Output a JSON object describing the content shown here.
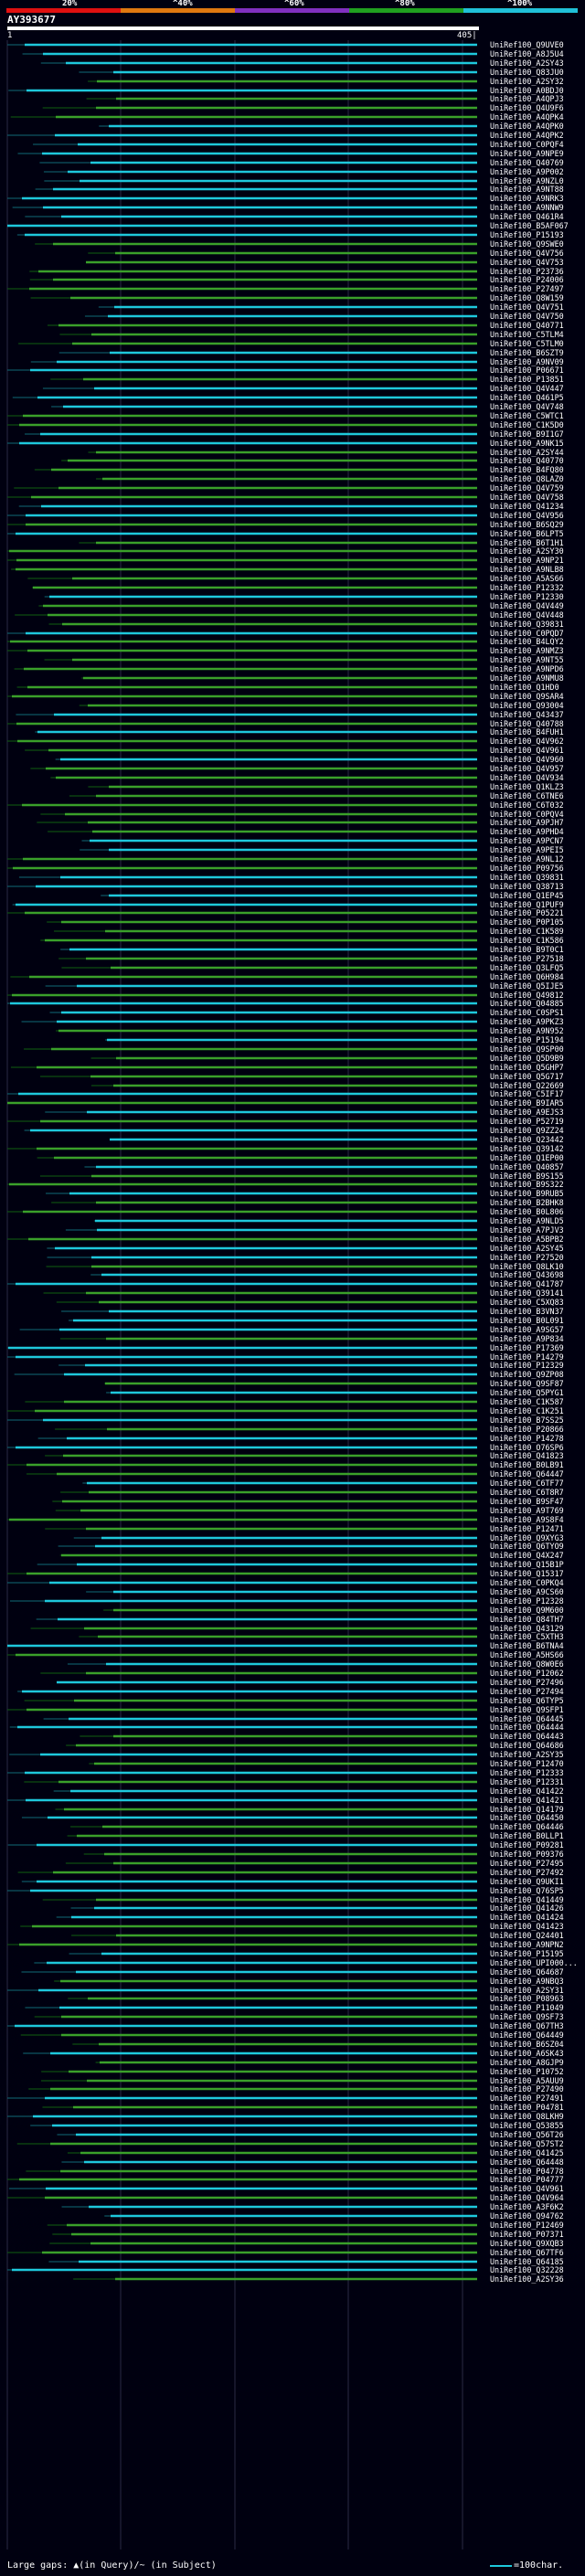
{
  "scale": {
    "labels": [
      "20%",
      "^40%",
      "^60%",
      "^80%",
      "^100%"
    ],
    "colors": [
      "#e01010",
      "#e07810",
      "#8030c0",
      "#20a020",
      "#20c0d8"
    ]
  },
  "query": {
    "id": "AY393677",
    "start": "1",
    "end": "405|"
  },
  "hits": [
    "UniRef100_Q9UVE0",
    "UniRef100_A8J5U4",
    "UniRef100_A2SY43",
    "UniRef100_Q83JU0",
    "UniRef100_A2SY32",
    "UniRef100_A0BDJ0",
    "UniRef100_A4QPJ3",
    "UniRef100_Q4U9F6",
    "UniRef100_A4QPK4",
    "UniRef100_A4QPK0",
    "UniRef100_A4QPK2",
    "UniRef100_C0PQF4",
    "UniRef100_A9NPE9",
    "UniRef100_Q40769",
    "UniRef100_A9P002",
    "UniRef100_A9NZL0",
    "UniRef100_A9NT88",
    "UniRef100_A9NRK3",
    "UniRef100_A9NNW9",
    "UniRef100_Q461R4",
    "UniRef100_B5AF067",
    "UniRef100_P15193",
    "UniRef100_Q9SWE0",
    "UniRef100_Q4V756",
    "UniRef100_Q4V753",
    "UniRef100_P23736",
    "UniRef100_P24006",
    "UniRef100_P27497",
    "UniRef100_Q8W159",
    "UniRef100_Q4V751",
    "UniRef100_Q4V750",
    "UniRef100_Q40771",
    "UniRef100_C5TLM4",
    "UniRef100_C5TLM0",
    "UniRef100_B6SZT9",
    "UniRef100_A9NV09",
    "UniRef100_P06671",
    "UniRef100_P13851",
    "UniRef100_Q4V447",
    "UniRef100_Q461P5",
    "UniRef100_Q4V748",
    "UniRef100_C5WTC1",
    "UniRef100_C1K5D0",
    "UniRef100_B9I1G7",
    "UniRef100_A9NK15",
    "UniRef100_A2SY44",
    "UniRef100_Q40770",
    "UniRef100_B4FQ80",
    "UniRef100_Q8LAZ0",
    "UniRef100_Q4V759",
    "UniRef100_Q4V758",
    "UniRef100_Q41234",
    "UniRef100_Q4V956",
    "UniRef100_B6SQ29",
    "UniRef100_B6LPT5",
    "UniRef100_B6T1H1",
    "UniRef100_A2SY30",
    "UniRef100_A9NP21",
    "UniRef100_A9NLB8",
    "UniRef100_A5AS66",
    "UniRef100_P12332",
    "UniRef100_P12330",
    "UniRef100_Q4V449",
    "UniRef100_Q4V448",
    "UniRef100_Q39831",
    "UniRef100_C0PQD7",
    "UniRef100_B4LQY2",
    "UniRef100_A9NMZ3",
    "UniRef100_A9NT55",
    "UniRef100_A9NPD6",
    "UniRef100_A9NMU8",
    "UniRef100_Q1HD0",
    "UniRef100_Q9SAR4",
    "UniRef100_Q93004",
    "UniRef100_Q43437",
    "UniRef100_Q40788",
    "UniRef100_B4FUH1",
    "UniRef100_Q4V962",
    "UniRef100_Q4V961",
    "UniRef100_Q4V960",
    "UniRef100_Q4V957",
    "UniRef100_Q4V934",
    "UniRef100_Q1KLZ3",
    "UniRef100_C6TNE6",
    "UniRef100_C6T032",
    "UniRef100_C0PQV4",
    "UniRef100_A9PJH7",
    "UniRef100_A9PHD4",
    "UniRef100_A9PCN7",
    "UniRef100_A9PEI5",
    "UniRef100_A9NL12",
    "UniRef100_P09756",
    "UniRef100_Q39831",
    "UniRef100_Q38713",
    "UniRef100_Q1EP45",
    "UniRef100_Q1PUF9",
    "UniRef100_P05221",
    "UniRef100_P0P105",
    "UniRef100_C1K589",
    "UniRef100_C1K586",
    "UniRef100_B9T0C1",
    "UniRef100_P27518",
    "UniRef100_Q3LFQ5",
    "UniRef100_Q6H984",
    "UniRef100_Q5IJE5",
    "UniRef100_Q49812",
    "UniRef100_Q04885",
    "UniRef100_C0SPS1",
    "UniRef100_A9PKZ3",
    "UniRef100_A9N952",
    "UniRef100_P15194",
    "UniRef100_Q9SP00",
    "UniRef100_Q5D9B9",
    "UniRef100_Q5GHP7",
    "UniRef100_Q5G717",
    "UniRef100_Q22669",
    "UniRef100_C5IF17",
    "UniRef100_B9IAR5",
    "UniRef100_A9EJS3",
    "UniRef100_P52719",
    "UniRef100_Q9ZZ24",
    "UniRef100_Q23442",
    "UniRef100_Q39142",
    "UniRef100_Q1EP00",
    "UniRef100_Q40857",
    "UniRef100_B9S155",
    "UniRef100_B9S322",
    "UniRef100_B9RUB5",
    "UniRef100_B2BHK8",
    "UniRef100_B0L806",
    "UniRef100_A9NLD5",
    "UniRef100_A7PJV3",
    "UniRef100_A5BPB2",
    "UniRef100_A2SY45",
    "UniRef100_P27520",
    "UniRef100_Q8LK10",
    "UniRef100_Q43698",
    "UniRef100_Q41787",
    "UniRef100_Q39141",
    "UniRef100_C5XQ83",
    "UniRef100_B3VN37",
    "UniRef100_B0L091",
    "UniRef100_A9SG57",
    "UniRef100_A9P834",
    "UniRef100_P17369",
    "UniRef100_P14279",
    "UniRef100_P12329",
    "UniRef100_Q9ZP08",
    "UniRef100_Q9SF87",
    "UniRef100_Q5PYG1",
    "UniRef100_C1K587",
    "UniRef100_C1K251",
    "UniRef100_B7SS25",
    "UniRef100_P20866",
    "UniRef100_P14278",
    "UniRef100_O76SP6",
    "UniRef100_Q41823",
    "UniRef100_B0LB91",
    "UniRef100_Q64447",
    "UniRef100_C6TF77",
    "UniRef100_C6T8R7",
    "UniRef100_B9SF47",
    "UniRef100_A9T769",
    "UniRef100_A9S8F4",
    "UniRef100_P12471",
    "UniRef100_Q9XYG3",
    "UniRef100_Q6TYO9",
    "UniRef100_Q4X247",
    "UniRef100_Q15B1P",
    "UniRef100_Q15317",
    "UniRef100_C0PKQ4",
    "UniRef100_A9CS60",
    "UniRef100_P12328",
    "UniRef100_Q9M600",
    "UniRef100_Q84TH7",
    "UniRef100_Q43129",
    "UniRef100_C5XTH3",
    "UniRef100_B6TNA4",
    "UniRef100_A5HS66",
    "UniRef100_Q8W0E6",
    "UniRef100_P12062",
    "UniRef100_P27496",
    "UniRef100_P27494",
    "UniRef100_Q6TYP5",
    "UniRef100_Q9SFP1",
    "UniRef100_Q64445",
    "UniRef100_Q64444",
    "UniRef100_Q64443",
    "UniRef100_Q64686",
    "UniRef100_A2SY35",
    "UniRef100_P12470",
    "UniRef100_P12333",
    "UniRef100_P12331",
    "UniRef100_Q41422",
    "UniRef100_Q41421",
    "UniRef100_Q14179",
    "UniRef100_Q64450",
    "UniRef100_Q64446",
    "UniRef100_B0LLP1",
    "UniRef100_P09281",
    "UniRef100_P09376",
    "UniRef100_P27495",
    "UniRef100_P27492",
    "UniRef100_Q9UKI1",
    "UniRef100_Q76SP5",
    "UniRef100_Q41449",
    "UniRef100_Q41426",
    "UniRef100_Q41424",
    "UniRef100_Q41423",
    "UniRef100_Q24401",
    "UniRef100_A9NPN2",
    "UniRef100_P15195",
    "UniRef100_UPI000...",
    "UniRef100_Q64687",
    "UniRef100_A9NBQ3",
    "UniRef100_A2SY31",
    "UniRef100_P08963",
    "UniRef100_P11049",
    "UniRef100_Q9SF73",
    "UniRef100_Q67TH3",
    "UniRef100_Q64449",
    "UniRef100_B6SZ04",
    "UniRef100_A6SK43",
    "UniRef100_A8GJP9",
    "UniRef100_P10752",
    "UniRef100_A5AUU9",
    "UniRef100_P27490",
    "UniRef100_P27491",
    "UniRef100_P04781",
    "UniRef100_Q8LKH9",
    "UniRef100_Q53855",
    "UniRef100_Q56T26",
    "UniRef100_Q57ST2",
    "UniRef100_Q41425",
    "UniRef100_Q64448",
    "UniRef100_P04778",
    "UniRef100_P04777",
    "UniRef100_Q4V961",
    "UniRef100_Q4V964",
    "UniRef100_A3F6K2",
    "UniRef100_Q94762",
    "UniRef100_P12469",
    "UniRef100_P07371",
    "UniRef100_Q9XQB3",
    "UniRef100_Q67TF6",
    "UniRef100_Q64185",
    "UniRef100_Q32228",
    "UniRef100_A2SY36"
  ]
}
